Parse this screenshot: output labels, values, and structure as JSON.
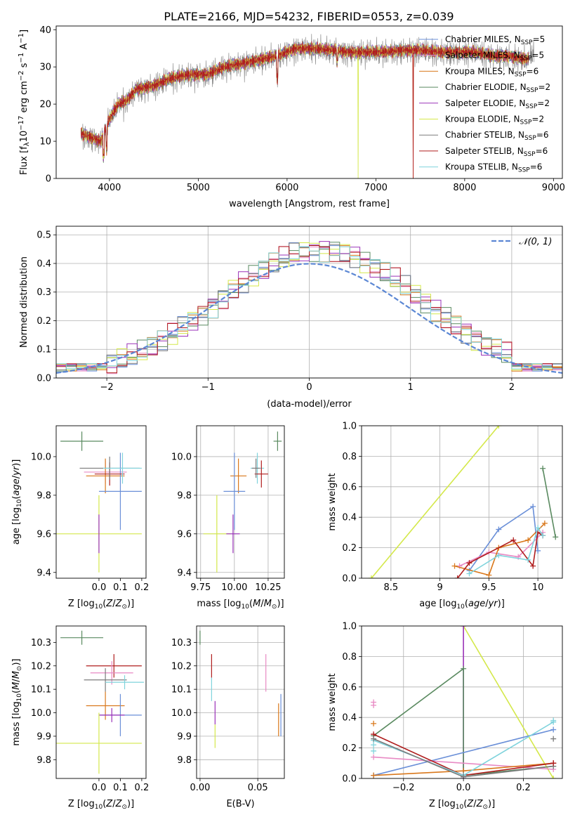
{
  "page_title": "PLATE=2166, MJD=54232, FIBERID=0553, z=0.039",
  "colors": {
    "Chabrier MILES": "#6a8fd8",
    "Salpeter MILES": "#e88ac4",
    "Kroupa MILES": "#d9781c",
    "Chabrier ELODIE": "#5a8a60",
    "Salpeter ELODIE": "#9a32b8",
    "Kroupa ELODIE": "#d4e84a",
    "Chabrier STELIB": "#7b7b7b",
    "Salpeter STELIB": "#b01e1e",
    "Kroupa STELIB": "#7fd3dc"
  },
  "chart_data": [
    {
      "id": "spectrum",
      "type": "line",
      "title": "PLATE=2166, MJD=54232, FIBERID=0553, z=0.039",
      "xlabel": "wavelength [Angstrom, rest frame]",
      "ylabel": "Flux [f_λ10^-17 erg cm^-2 s^-1 A^-1]",
      "xlim": [
        3400,
        9100
      ],
      "ylim": [
        0,
        41
      ],
      "xticks": [
        4000,
        5000,
        6000,
        7000,
        8000,
        9000
      ],
      "yticks": [
        0,
        10,
        20,
        30,
        40
      ],
      "grid": false,
      "legend_position": "right",
      "series": [
        {
          "name": "Chabrier MILES, N_SSP=5",
          "label_main": "Chabrier MILES, N",
          "label_sub": "SSP",
          "label_end": "=5",
          "color": "#6a8fd8"
        },
        {
          "name": "Salpeter MILES, N_SSP=5",
          "label_main": "Salpeter MILES, N",
          "label_sub": "SSP",
          "label_end": "=5",
          "color": "#e88ac4"
        },
        {
          "name": "Kroupa MILES, N_SSP=6",
          "label_main": "Kroupa MILES, N",
          "label_sub": "SSP",
          "label_end": "=6",
          "color": "#d9781c",
          "drop_at": 7420
        },
        {
          "name": "Chabrier ELODIE, N_SSP=2",
          "label_main": "Chabrier ELODIE, N",
          "label_sub": "SSP",
          "label_end": "=2",
          "color": "#5a8a60"
        },
        {
          "name": "Salpeter ELODIE, N_SSP=2",
          "label_main": "Salpeter ELODIE, N",
          "label_sub": "SSP",
          "label_end": "=2",
          "color": "#9a32b8"
        },
        {
          "name": "Kroupa ELODIE, N_SSP=2",
          "label_main": "Kroupa ELODIE, N",
          "label_sub": "SSP",
          "label_end": "=2",
          "color": "#d4e84a",
          "drop_at": 6800
        },
        {
          "name": "Chabrier STELIB, N_SSP=6",
          "label_main": "Chabrier STELIB, N",
          "label_sub": "SSP",
          "label_end": "=6",
          "color": "#7b7b7b"
        },
        {
          "name": "Salpeter STELIB, N_SSP=6",
          "label_main": "Salpeter STELIB, N",
          "label_sub": "SSP",
          "label_end": "=6",
          "color": "#b01e1e",
          "drop_at": 7420
        },
        {
          "name": "Kroupa STELIB, N_SSP=6",
          "label_main": "Kroupa STELIB, N",
          "label_sub": "SSP",
          "label_end": "=6",
          "color": "#7fd3dc"
        }
      ],
      "continuum": {
        "x": [
          3680,
          3800,
          3900,
          4000,
          4100,
          4200,
          4300,
          4500,
          4700,
          4900,
          5100,
          5300,
          5500,
          5700,
          5900,
          6100,
          6300,
          6500,
          6700,
          6900,
          7100,
          7300,
          7500,
          7700,
          7900,
          8100,
          8300,
          8500,
          8700,
          8780
        ],
        "y": [
          12,
          11,
          10,
          16,
          20,
          21,
          24,
          25,
          27,
          28,
          28,
          30,
          31,
          32,
          33,
          35,
          35,
          34.5,
          34,
          34,
          34,
          34.5,
          34.5,
          34,
          34,
          34,
          33,
          33,
          32,
          34
        ]
      }
    },
    {
      "id": "residuals",
      "type": "histogram",
      "xlabel": "(data-model)/error",
      "ylabel": "Normed distribution",
      "xlim": [
        -2.5,
        2.5
      ],
      "ylim": [
        0,
        0.53
      ],
      "xticks": [
        -2,
        -1,
        0,
        1,
        2
      ],
      "yticks": [
        0.0,
        0.1,
        0.2,
        0.3,
        0.4,
        0.5
      ],
      "grid": true,
      "legend_position": "top-right",
      "legend": "N(0,1)",
      "bin_width": 0.1,
      "bin_start": -2.5
    },
    {
      "id": "age_vs_Z",
      "type": "scatter",
      "xlabel": "Z [log10(Z/Z⊙)]",
      "ylabel": "age [log10(age/yr)]",
      "xlim": [
        -0.2,
        0.22
      ],
      "ylim": [
        9.37,
        10.16
      ],
      "xticks": [
        -0.0,
        0.1,
        0.2
      ],
      "xtick_labels": [
        "0.0",
        "0.1",
        "0.2"
      ],
      "yticks": [
        9.4,
        9.6,
        9.8,
        10.0
      ],
      "grid": false,
      "points": [
        {
          "x": -0.08,
          "y": 10.08,
          "xerr": 0.1,
          "yerr": 0.05,
          "color": "#5a8a60"
        },
        {
          "x": 0.03,
          "y": 9.92,
          "xerr": 0.1,
          "yerr": 0.06,
          "color": "#e88ac4"
        },
        {
          "x": 0.03,
          "y": 9.9,
          "xerr": 0.09,
          "yerr": 0.09,
          "color": "#d9781c"
        },
        {
          "x": 0.1,
          "y": 9.82,
          "xerr": 0.1,
          "yerr": 0.2,
          "color": "#6a8fd8"
        },
        {
          "x": 0.0,
          "y": 9.6,
          "xerr": 0.2,
          "yerr": 0.2,
          "color": "#d4e84a"
        },
        {
          "x": 0.05,
          "y": 9.91,
          "xerr": 0.07,
          "yerr": 0.06,
          "color": "#b01e1e"
        },
        {
          "x": 0.05,
          "y": 9.94,
          "xerr": 0.14,
          "yerr": 0.06,
          "color": "#7b7b7b"
        },
        {
          "x": 0.11,
          "y": 9.94,
          "xerr": 0.09,
          "yerr": 0.08,
          "color": "#7fd3dc"
        },
        {
          "x": 0.0,
          "y": 9.6,
          "xerr": 0.0,
          "yerr": 0.1,
          "color": "#9a32b8"
        }
      ]
    },
    {
      "id": "age_vs_mass",
      "type": "scatter",
      "xlabel": "mass [log10(M/M⊙)]",
      "xlim": [
        9.72,
        10.37
      ],
      "ylim": [
        9.37,
        10.16
      ],
      "xticks": [
        9.75,
        10.0,
        10.25
      ],
      "xtick_labels": [
        "9.75",
        "10.00",
        "10.25"
      ],
      "yticks": [
        9.4,
        9.6,
        9.8,
        10.0
      ],
      "grid": true,
      "points": [
        {
          "x": 10.32,
          "y": 10.08,
          "xerr": 0.03,
          "yerr": 0.05,
          "color": "#5a8a60"
        },
        {
          "x": 10.17,
          "y": 9.94,
          "xerr": 0.05,
          "yerr": 0.08,
          "color": "#7fd3dc"
        },
        {
          "x": 10.2,
          "y": 9.91,
          "xerr": 0.05,
          "yerr": 0.07,
          "color": "#b01e1e"
        },
        {
          "x": 10.03,
          "y": 9.9,
          "xerr": 0.06,
          "yerr": 0.09,
          "color": "#d9781c"
        },
        {
          "x": 10.0,
          "y": 9.82,
          "xerr": 0.08,
          "yerr": 0.2,
          "color": "#6a8fd8"
        },
        {
          "x": 9.87,
          "y": 9.6,
          "xerr": 0.1,
          "yerr": 0.2,
          "color": "#d4e84a"
        },
        {
          "x": 9.99,
          "y": 9.6,
          "xerr": 0.05,
          "yerr": 0.1,
          "color": "#9a32b8"
        },
        {
          "x": 10.16,
          "y": 9.94,
          "xerr": 0.03,
          "yerr": 0.05,
          "color": "#7b7b7b"
        }
      ]
    },
    {
      "id": "mass_weight_vs_age",
      "type": "line",
      "xlabel": "age [log10(age/yr)]",
      "ylabel": "mass weight",
      "xlim": [
        8.2,
        10.25
      ],
      "ylim": [
        0,
        1.0
      ],
      "xticks": [
        8.5,
        9.0,
        9.5,
        10.0
      ],
      "yticks": [
        0.0,
        0.2,
        0.4,
        0.6,
        0.8,
        1.0
      ],
      "grid": true,
      "series": [
        {
          "color": "#d4e84a",
          "x": [
            8.3,
            9.6
          ],
          "y": [
            0.0,
            1.0
          ]
        },
        {
          "color": "#6a8fd8",
          "x": [
            9.3,
            9.6,
            9.95,
            10.0
          ],
          "y": [
            0.05,
            0.32,
            0.47,
            0.18
          ]
        },
        {
          "color": "#5a8a60",
          "x": [
            10.05,
            10.18
          ],
          "y": [
            0.72,
            0.27
          ]
        },
        {
          "color": "#e88ac4",
          "x": [
            9.2,
            9.5,
            9.8,
            10.05
          ],
          "y": [
            0.08,
            0.17,
            0.14,
            0.3
          ]
        },
        {
          "color": "#d9781c",
          "x": [
            9.15,
            9.5,
            9.6,
            9.9,
            10.07
          ],
          "y": [
            0.08,
            0.02,
            0.2,
            0.25,
            0.36
          ]
        },
        {
          "color": "#b01e1e",
          "x": [
            9.18,
            9.3,
            9.75,
            9.95,
            10.0,
            10.05
          ],
          "y": [
            0.0,
            0.1,
            0.25,
            0.08,
            0.3,
            0.28
          ]
        },
        {
          "color": "#7fd3dc",
          "x": [
            9.3,
            9.6,
            9.9,
            10.0,
            10.05
          ],
          "y": [
            0.03,
            0.15,
            0.12,
            0.33,
            0.28
          ]
        }
      ]
    },
    {
      "id": "mass_vs_Z",
      "type": "scatter",
      "xlabel": "Z [log10(Z/Z⊙)]",
      "ylabel": "mass [log10(M/M⊙)]",
      "xlim": [
        -0.2,
        0.22
      ],
      "ylim": [
        9.72,
        10.37
      ],
      "xticks": [
        -0.0,
        0.1,
        0.2
      ],
      "xtick_labels": [
        "0.0",
        "0.1",
        "0.2"
      ],
      "yticks": [
        9.8,
        9.9,
        10.0,
        10.1,
        10.2,
        10.3
      ],
      "grid": false,
      "points": [
        {
          "x": -0.08,
          "y": 10.32,
          "xerr": 0.1,
          "yerr": 0.03,
          "color": "#5a8a60"
        },
        {
          "x": 0.07,
          "y": 10.2,
          "xerr": 0.13,
          "yerr": 0.05,
          "color": "#b01e1e"
        },
        {
          "x": 0.06,
          "y": 10.17,
          "xerr": 0.1,
          "yerr": 0.05,
          "color": "#e88ac4"
        },
        {
          "x": 0.03,
          "y": 10.14,
          "xerr": 0.1,
          "yerr": 0.05,
          "color": "#7b7b7b"
        },
        {
          "x": 0.12,
          "y": 10.13,
          "xerr": 0.09,
          "yerr": 0.03,
          "color": "#7fd3dc"
        },
        {
          "x": 0.03,
          "y": 10.03,
          "xerr": 0.09,
          "yerr": 0.06,
          "color": "#d9781c"
        },
        {
          "x": 0.1,
          "y": 9.99,
          "xerr": 0.1,
          "yerr": 0.09,
          "color": "#6a8fd8"
        },
        {
          "x": 0.06,
          "y": 9.99,
          "xerr": 0.06,
          "yerr": 0.03,
          "color": "#9a32b8"
        },
        {
          "x": 0.0,
          "y": 9.87,
          "xerr": 0.2,
          "yerr": 0.13,
          "color": "#d4e84a"
        }
      ]
    },
    {
      "id": "mass_vs_ebv",
      "type": "scatter",
      "xlabel": "E(B-V)",
      "xlim": [
        -0.003,
        0.073
      ],
      "ylim": [
        9.72,
        10.37
      ],
      "xticks": [
        0.0,
        0.05
      ],
      "xtick_labels": [
        "0.00",
        "0.05"
      ],
      "yticks": [
        9.8,
        9.9,
        10.0,
        10.1,
        10.2,
        10.3
      ],
      "grid": true,
      "points": [
        {
          "x": 0.0,
          "y": 10.32,
          "xerr": 0.0,
          "yerr": 0.03,
          "color": "#5a8a60"
        },
        {
          "x": 0.01,
          "y": 10.2,
          "xerr": 0.0,
          "yerr": 0.05,
          "color": "#b01e1e"
        },
        {
          "x": 0.01,
          "y": 10.1,
          "xerr": 0.0,
          "yerr": 0.05,
          "color": "#7fd3dc"
        },
        {
          "x": 0.013,
          "y": 10.0,
          "xerr": 0.0,
          "yerr": 0.05,
          "color": "#9a32b8"
        },
        {
          "x": 0.013,
          "y": 9.9,
          "xerr": 0.0,
          "yerr": 0.05,
          "color": "#d4e84a"
        },
        {
          "x": 0.057,
          "y": 10.17,
          "xerr": 0.0,
          "yerr": 0.08,
          "color": "#e88ac4"
        },
        {
          "x": 0.068,
          "y": 9.97,
          "xerr": 0.0,
          "yerr": 0.07,
          "color": "#d9781c"
        },
        {
          "x": 0.07,
          "y": 9.99,
          "xerr": 0.0,
          "yerr": 0.09,
          "color": "#6a8fd8"
        }
      ]
    },
    {
      "id": "mass_weight_vs_Z",
      "type": "line",
      "xlabel": "Z [log10(Z/Z⊙)]",
      "ylabel": "mass weight",
      "xlim": [
        -0.34,
        0.33
      ],
      "ylim": [
        0,
        1.0
      ],
      "xticks": [
        -0.2,
        0.0,
        0.2
      ],
      "xtick_labels": [
        "−0.2",
        "0.0",
        "0.2"
      ],
      "yticks": [
        0.0,
        0.2,
        0.4,
        0.6,
        0.8,
        1.0
      ],
      "grid": true,
      "series": [
        {
          "color": "#d4e84a",
          "x": [
            0.0,
            0.3
          ],
          "y": [
            1.0,
            0.0
          ]
        },
        {
          "color": "#9a32b8",
          "x": [
            0.0,
            0.0
          ],
          "y": [
            0.0,
            1.0
          ]
        },
        {
          "color": "#5a8a60",
          "x": [
            -0.3,
            0.0,
            0.0,
            0.3
          ],
          "y": [
            0.28,
            0.72,
            0.02,
            0.08
          ]
        },
        {
          "color": "#6a8fd8",
          "x": [
            -0.3,
            0.3
          ],
          "y": [
            0.02,
            0.32
          ]
        },
        {
          "color": "#e88ac4",
          "x": [
            -0.3,
            0.3
          ],
          "y": [
            0.14,
            0.06
          ]
        },
        {
          "color": "#d9781c",
          "x": [
            -0.3,
            0.0,
            0.3
          ],
          "y": [
            0.02,
            0.05,
            0.1
          ]
        },
        {
          "color": "#b01e1e",
          "x": [
            -0.3,
            0.0,
            0.3
          ],
          "y": [
            0.29,
            0.02,
            0.1
          ]
        },
        {
          "color": "#7fd3dc",
          "x": [
            -0.3,
            0.0,
            0.3
          ],
          "y": [
            0.25,
            0.02,
            0.37
          ]
        },
        {
          "color": "#7b7b7b",
          "x": [
            -0.3,
            0.0,
            0.3
          ],
          "y": [
            0.26,
            0.01,
            0.08
          ]
        }
      ],
      "marker_points": [
        {
          "x": -0.3,
          "y": 0.5,
          "color": "#e88ac4"
        },
        {
          "x": -0.3,
          "y": 0.48,
          "color": "#e88ac4"
        },
        {
          "x": -0.3,
          "y": 0.36,
          "color": "#d9781c"
        },
        {
          "x": -0.3,
          "y": 0.18,
          "color": "#7fd3dc"
        },
        {
          "x": -0.3,
          "y": 0.22,
          "color": "#7fd3dc"
        },
        {
          "x": 0.3,
          "y": 0.38,
          "color": "#7fd3dc"
        },
        {
          "x": 0.3,
          "y": 0.26,
          "color": "#7b7b7b"
        },
        {
          "x": 0.3,
          "y": 0.1,
          "color": "#b01e1e"
        }
      ]
    }
  ]
}
